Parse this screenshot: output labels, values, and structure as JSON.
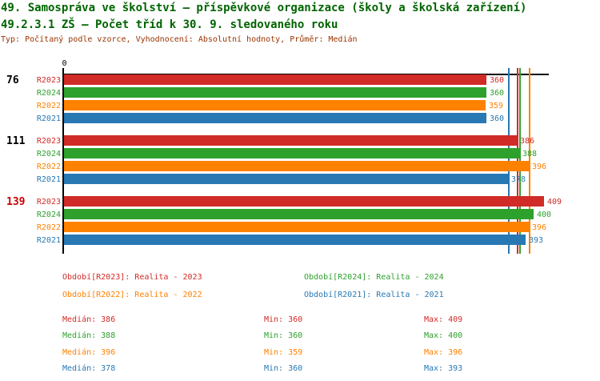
{
  "header": {
    "title1": "49. Samospráva ve školství – příspěvkové organizace (školy a školská zařízení)",
    "title2": "49.2.3.1 ZŠ – Počet tříd k 30. 9. sledovaného roku",
    "meta": "Typ: Počítaný podle vzorce, Vyhodnocení: Absolutní hodnoty, Průměr: Medián"
  },
  "chart_data": {
    "type": "bar",
    "orientation": "horizontal",
    "title": "49.2.3.1 ZŠ – Počet tříd k 30. 9. sledovaného roku",
    "categories": [
      "76",
      "111",
      "139"
    ],
    "category_colors": [
      "#000000",
      "#000000",
      "#cc0000"
    ],
    "series": [
      {
        "name": "R2023",
        "color": "#d02b27",
        "values": [
          360,
          386,
          409
        ],
        "median": 386,
        "min": 360,
        "max": 409
      },
      {
        "name": "R2024",
        "color": "#2ea12c",
        "values": [
          360,
          388,
          400
        ],
        "median": 388,
        "min": 360,
        "max": 400
      },
      {
        "name": "R2022",
        "color": "#ff8100",
        "values": [
          359,
          396,
          396
        ],
        "median": 396,
        "min": 359,
        "max": 396
      },
      {
        "name": "R2021",
        "color": "#2878b4",
        "values": [
          360,
          378,
          393
        ],
        "median": 378,
        "min": 360,
        "max": 393
      }
    ],
    "axis_origin_label": "0",
    "xlim": [
      0,
      413
    ],
    "grid": false,
    "value_labels": true,
    "median_lines": true,
    "legend_position": "bottom"
  },
  "legend": {
    "items": [
      {
        "label": "Období[R2023]: Realita - 2023",
        "color": "#d02b27"
      },
      {
        "label": "Období[R2024]: Realita - 2024",
        "color": "#2ea12c"
      },
      {
        "label": "Období[R2022]: Realita - 2022",
        "color": "#ff8100"
      },
      {
        "label": "Období[R2021]: Realita - 2021",
        "color": "#2878b4"
      }
    ]
  },
  "stats": {
    "median_title": "Medián",
    "min_title": "Min",
    "max_title": "Max",
    "rows": [
      {
        "series": "R2023",
        "color": "#d02b27",
        "median": 386,
        "min": 360,
        "max": 409
      },
      {
        "series": "R2024",
        "color": "#2ea12c",
        "median": 388,
        "min": 360,
        "max": 400
      },
      {
        "series": "R2022",
        "color": "#ff8100",
        "median": 396,
        "min": 359,
        "max": 396
      },
      {
        "series": "R2021",
        "color": "#2878b4",
        "median": 378,
        "min": 360,
        "max": 393
      }
    ]
  }
}
